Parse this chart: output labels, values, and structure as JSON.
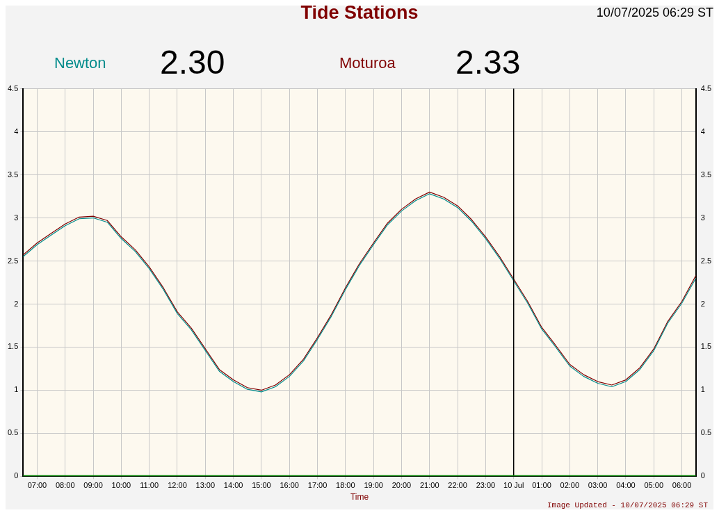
{
  "chart_data": {
    "type": "line",
    "title": "Tide Stations",
    "subtitle": "10/07/2025 06:29 ST",
    "xlabel": "Time",
    "xlim": [
      "2025-07-09T06:30",
      "2025-07-10T06:30"
    ],
    "xticks": [
      {
        "value": "2025-07-09T07:00",
        "label": "07:00"
      },
      {
        "value": "2025-07-09T08:00",
        "label": "08:00"
      },
      {
        "value": "2025-07-09T09:00",
        "label": "09:00"
      },
      {
        "value": "2025-07-09T10:00",
        "label": "10:00"
      },
      {
        "value": "2025-07-09T11:00",
        "label": "11:00"
      },
      {
        "value": "2025-07-09T12:00",
        "label": "12:00"
      },
      {
        "value": "2025-07-09T13:00",
        "label": "13:00"
      },
      {
        "value": "2025-07-09T14:00",
        "label": "14:00"
      },
      {
        "value": "2025-07-09T15:00",
        "label": "15:00"
      },
      {
        "value": "2025-07-09T16:00",
        "label": "16:00"
      },
      {
        "value": "2025-07-09T17:00",
        "label": "17:00"
      },
      {
        "value": "2025-07-09T18:00",
        "label": "18:00"
      },
      {
        "value": "2025-07-09T19:00",
        "label": "19:00"
      },
      {
        "value": "2025-07-09T20:00",
        "label": "20:00"
      },
      {
        "value": "2025-07-09T21:00",
        "label": "21:00"
      },
      {
        "value": "2025-07-09T22:00",
        "label": "22:00"
      },
      {
        "value": "2025-07-09T23:00",
        "label": "23:00"
      },
      {
        "value": "2025-07-10T00:00",
        "label": "10 Jul"
      },
      {
        "value": "2025-07-10T01:00",
        "label": "01:00"
      },
      {
        "value": "2025-07-10T02:00",
        "label": "02:00"
      },
      {
        "value": "2025-07-10T03:00",
        "label": "03:00"
      },
      {
        "value": "2025-07-10T04:00",
        "label": "04:00"
      },
      {
        "value": "2025-07-10T05:00",
        "label": "05:00"
      },
      {
        "value": "2025-07-10T06:00",
        "label": "06:00"
      }
    ],
    "ylim": [
      0,
      4.5
    ],
    "yticks": [
      0,
      0.5,
      1,
      1.5,
      2,
      2.5,
      3,
      3.5,
      4,
      4.5
    ],
    "y2lim": [
      0,
      4.5
    ],
    "y2ticks": [
      0,
      0.5,
      1,
      1.5,
      2,
      2.5,
      3,
      3.5,
      4,
      4.5
    ],
    "x": [
      "2025-07-09T06:30",
      "2025-07-09T07:00",
      "2025-07-09T07:30",
      "2025-07-09T08:00",
      "2025-07-09T08:30",
      "2025-07-09T09:00",
      "2025-07-09T09:30",
      "2025-07-09T10:00",
      "2025-07-09T10:30",
      "2025-07-09T11:00",
      "2025-07-09T11:30",
      "2025-07-09T12:00",
      "2025-07-09T12:30",
      "2025-07-09T13:00",
      "2025-07-09T13:30",
      "2025-07-09T14:00",
      "2025-07-09T14:30",
      "2025-07-09T15:00",
      "2025-07-09T15:30",
      "2025-07-09T16:00",
      "2025-07-09T16:30",
      "2025-07-09T17:00",
      "2025-07-09T17:30",
      "2025-07-09T18:00",
      "2025-07-09T18:30",
      "2025-07-09T19:00",
      "2025-07-09T19:30",
      "2025-07-09T20:00",
      "2025-07-09T20:30",
      "2025-07-09T21:00",
      "2025-07-09T21:30",
      "2025-07-09T22:00",
      "2025-07-09T22:30",
      "2025-07-09T23:00",
      "2025-07-09T23:30",
      "2025-07-10T00:00",
      "2025-07-10T00:30",
      "2025-07-10T01:00",
      "2025-07-10T01:30",
      "2025-07-10T02:00",
      "2025-07-10T02:30",
      "2025-07-10T03:00",
      "2025-07-10T03:30",
      "2025-07-10T04:00",
      "2025-07-10T04:30",
      "2025-07-10T05:00",
      "2025-07-10T05:30",
      "2025-07-10T06:00",
      "2025-07-10T06:30"
    ],
    "series": [
      {
        "name": "Newton",
        "color": "#008b8b",
        "values": [
          2.55,
          2.69,
          2.8,
          2.91,
          2.99,
          3.0,
          2.95,
          2.76,
          2.61,
          2.41,
          2.17,
          1.89,
          1.7,
          1.46,
          1.22,
          1.1,
          1.01,
          0.98,
          1.04,
          1.16,
          1.34,
          1.59,
          1.86,
          2.17,
          2.45,
          2.69,
          2.92,
          3.08,
          3.2,
          3.28,
          3.22,
          3.12,
          2.96,
          2.76,
          2.53,
          2.27,
          2.01,
          1.71,
          1.5,
          1.28,
          1.16,
          1.08,
          1.04,
          1.1,
          1.24,
          1.46,
          1.78,
          2.01,
          2.3
        ]
      },
      {
        "name": "Moturoa",
        "color": "#800000",
        "values": [
          2.57,
          2.71,
          2.82,
          2.93,
          3.01,
          3.02,
          2.97,
          2.78,
          2.63,
          2.43,
          2.19,
          1.91,
          1.72,
          1.48,
          1.24,
          1.12,
          1.03,
          1.0,
          1.06,
          1.18,
          1.36,
          1.61,
          1.88,
          2.19,
          2.47,
          2.71,
          2.94,
          3.1,
          3.22,
          3.3,
          3.24,
          3.14,
          2.98,
          2.78,
          2.55,
          2.29,
          2.03,
          1.73,
          1.52,
          1.3,
          1.18,
          1.1,
          1.06,
          1.12,
          1.26,
          1.48,
          1.8,
          2.03,
          2.33
        ]
      }
    ],
    "annotations": [
      "2.30",
      "2.33",
      "Image Updated - 10/07/2025 06:29 ST"
    ],
    "ref_lines": [
      {
        "axis": "x",
        "value": "2025-07-10T00:00",
        "color": "#000000"
      },
      {
        "axis": "y",
        "value": 0,
        "color": "#008000"
      }
    ],
    "grid": true,
    "legend": "top",
    "marker": "none",
    "line_style": "solid"
  }
}
